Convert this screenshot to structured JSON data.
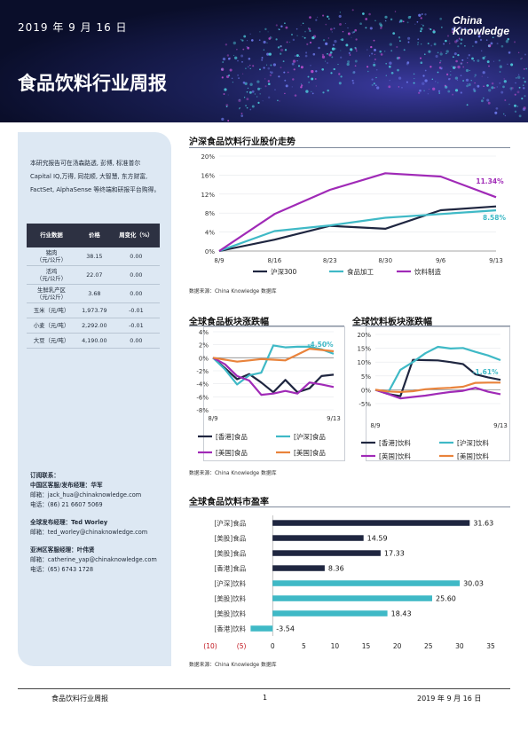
{
  "header": {
    "date": "2019 年 9 月 16 日",
    "logo_line1": "China",
    "logo_line2": "Knowledge",
    "title": "食品饮料行业周报"
  },
  "sidebar": {
    "intro": "本研究报告可在汤森路透, 彭博, 标准普尔 Capital IQ,万得, 同花顺, 大智慧, 东方财富, FactSet, AlphaSense 等终端和研报平台购得。",
    "table": {
      "headers": [
        "行业数据",
        "价格",
        "周变化（%）"
      ],
      "rows": [
        [
          "猪肉\n（元/公斤）",
          "38.15",
          "0.00"
        ],
        [
          "活鸡\n（元/公斤）",
          "22.07",
          "0.00"
        ],
        [
          "生鲜乳产区\n（元/公斤）",
          "3.68",
          "0.00"
        ],
        [
          "玉米（元/吨）",
          "1,973.79",
          "-0.01"
        ],
        [
          "小麦（元/吨）",
          "2,292.00",
          "-0.01"
        ],
        [
          "大豆（元/吨）",
          "4,190.00",
          "0.00"
        ]
      ]
    },
    "contacts": [
      {
        "title": "订阅联系：",
        "lines": [
          "中国区客服/发布经理：华军",
          "邮箱：jack_hua@chinaknowledge.com",
          "电话：(86) 21 6607 5069"
        ]
      },
      {
        "title": "全球发布经理：Ted Worley",
        "lines": [
          "邮箱：ted_worley@chinaknowledge.com"
        ]
      },
      {
        "title": "亚洲区客服经理：叶伟贤",
        "lines": [
          "邮箱：catherine_yap@chinaknowledge.com",
          "电话：(65) 6743 1728"
        ]
      }
    ]
  },
  "sections": {
    "s1_title": "沪深食品饮料行业股价走势",
    "s2_title": "全球食品板块涨跌幅",
    "s3_title": "全球饮料板块涨跌幅",
    "s4_title": "全球食品饮料市盈率",
    "source": "数据来源：China Knowledge 数据库"
  },
  "footer": {
    "left": "食品饮料行业周报",
    "page": "1",
    "right": "2019 年 9 月 16 日"
  },
  "colors": {
    "navy": "#1f2640",
    "teal": "#3fb9c6",
    "purple": "#a02ab7",
    "orange": "#e9833b",
    "pos_bar": "#1f2640",
    "neg_bar": "#3fb9c6",
    "red_tick": "#c0121b"
  },
  "chart_data": [
    {
      "type": "line",
      "x": [
        "8/9",
        "8/16",
        "8/23",
        "8/30",
        "9/6",
        "9/13"
      ],
      "ylim": [
        0,
        20
      ],
      "yticks": [
        "0%",
        "4%",
        "8%",
        "12%",
        "16%",
        "20%"
      ],
      "series": [
        {
          "name": "沪深300",
          "values": [
            0,
            2.4,
            5.3,
            4.7,
            8.6,
            9.4
          ]
        },
        {
          "name": "食品加工",
          "values": [
            0,
            4.2,
            5.4,
            7.0,
            7.8,
            8.58
          ]
        },
        {
          "name": "饮料制造",
          "values": [
            0,
            7.8,
            12.9,
            16.4,
            15.7,
            11.34
          ]
        }
      ],
      "annotations": [
        "11.34%",
        "8.58%"
      ]
    },
    {
      "type": "line",
      "x": [
        "8/9",
        "",
        "",
        "",
        "",
        "",
        "",
        "",
        "",
        "",
        "9/13"
      ],
      "ylim": [
        -8,
        4
      ],
      "yticks": [
        "-8%",
        "-6%",
        "-4%",
        "-2%",
        "0%",
        "2%",
        "4%"
      ],
      "series": [
        {
          "name": "[香港]食品",
          "values": [
            0,
            -1.6,
            -3.3,
            -2.5,
            -3.8,
            -5.3,
            -3.4,
            -5.3,
            -4.7,
            -2.8,
            -2.6
          ]
        },
        {
          "name": "[沪深]食品",
          "values": [
            0,
            -1.8,
            -4.1,
            -2.7,
            -2.3,
            1.9,
            1.6,
            1.7,
            1.7,
            1.3,
            0.6
          ]
        },
        {
          "name": "[美国]食品",
          "values": [
            0,
            -1.0,
            -2.8,
            -3.5,
            -5.7,
            -5.5,
            -5.1,
            -5.5,
            -3.8,
            -4.1,
            -4.5
          ]
        },
        {
          "name": "[美国]食品",
          "values": [
            0,
            -0.3,
            -0.6,
            -0.4,
            -0.2,
            -0.3,
            -0.4,
            0.5,
            1.4,
            1.2,
            1.0
          ]
        }
      ],
      "annotations": [
        "-4.50%"
      ]
    },
    {
      "type": "line",
      "x": [
        "8/9",
        "",
        "",
        "",
        "",
        "",
        "",
        "",
        "",
        "",
        "9/13"
      ],
      "ylim": [
        -5,
        20
      ],
      "yticks": [
        "-5%",
        "0%",
        "5%",
        "10%",
        "15%",
        "20%"
      ],
      "series": [
        {
          "name": "[香港]饮料",
          "values": [
            0,
            -1.5,
            -2.3,
            10.8,
            10.7,
            10.6,
            10.0,
            9.3,
            5.6,
            4.5,
            3.6
          ]
        },
        {
          "name": "[沪深]饮料",
          "values": [
            0,
            -1.2,
            7.2,
            10.0,
            13.2,
            15.5,
            14.9,
            15.1,
            13.7,
            12.4,
            10.7
          ]
        },
        {
          "name": "[英国]饮料",
          "values": [
            0,
            -1.5,
            -3.1,
            -2.6,
            -2.1,
            -1.4,
            -0.8,
            -0.4,
            0.7,
            -0.7,
            -1.61
          ]
        },
        {
          "name": "[美国]饮料",
          "values": [
            0,
            -0.6,
            -0.8,
            -0.5,
            0.2,
            0.5,
            0.7,
            1.1,
            2.5,
            2.6,
            2.6
          ]
        }
      ],
      "annotations": [
        "-1.61%"
      ]
    },
    {
      "type": "bar",
      "orientation": "horizontal",
      "categories": [
        "[沪深]食品",
        "[美股]食品",
        "[美股]食品",
        "[香港]食品",
        "[沪深]饮料",
        "[美股]饮料",
        "[美股]饮料",
        "[香港]饮料"
      ],
      "values": [
        31.63,
        14.59,
        17.33,
        8.36,
        30.03,
        25.6,
        18.43,
        -3.54
      ],
      "labels": [
        "31.63",
        "14.59",
        "17.33",
        "8.36",
        "30.03",
        "25.60",
        "18.43",
        "-3.54"
      ],
      "xlim": [
        -10,
        35
      ],
      "xticks": [
        "(10)",
        "(5)",
        "0",
        "5",
        "10",
        "15",
        "20",
        "25",
        "30",
        "35"
      ]
    }
  ]
}
